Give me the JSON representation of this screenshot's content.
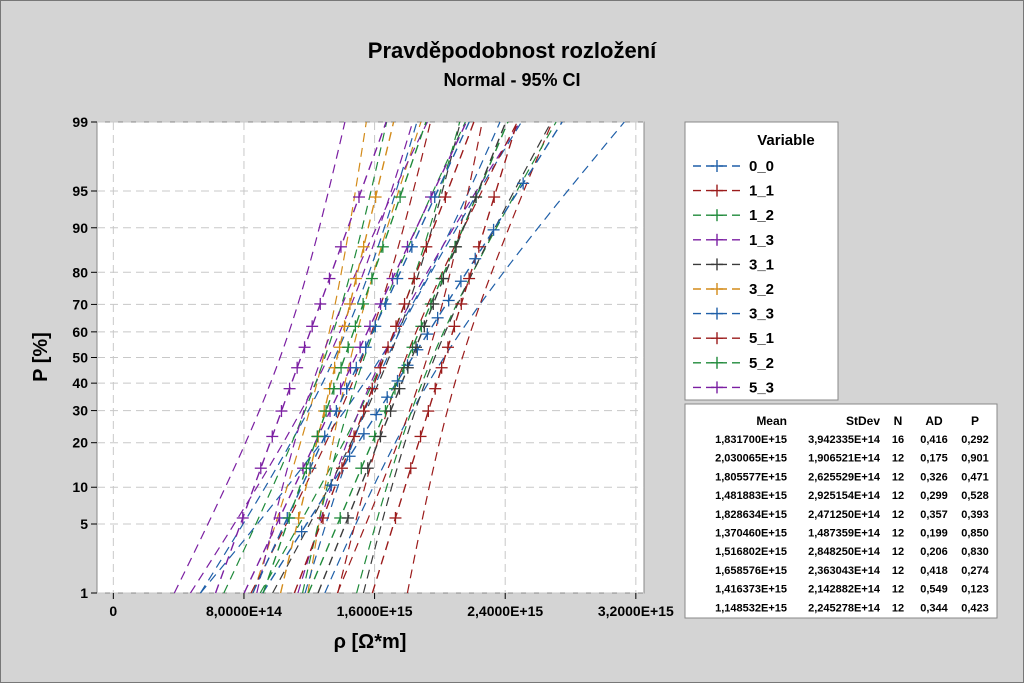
{
  "chart_data": {
    "type": "probability-plot",
    "title": "Pravděpodobnost rozložení",
    "subtitle": "Normal - 95% CI",
    "xlabel": "ρ [Ω*m]",
    "ylabel": "P [%]",
    "xlim": [
      -100000000000000,
      3250000000000000
    ],
    "x_ticks": [
      0,
      800000000000000,
      1600000000000000,
      2400000000000000,
      3200000000000000
    ],
    "x_tick_labels": [
      "0",
      "8,0000E+14",
      "1,6000E+15",
      "2,4000E+15",
      "3,2000E+15"
    ],
    "y_scale": "normal-probability",
    "y_ticks": [
      1,
      5,
      10,
      20,
      30,
      40,
      50,
      60,
      70,
      80,
      90,
      95,
      99
    ],
    "y_tick_labels": [
      "1",
      "5",
      "10",
      "20",
      "30",
      "40",
      "50",
      "60",
      "70",
      "80",
      "90",
      "95",
      "99"
    ],
    "grid": true,
    "legend_title": "Variable",
    "legend_position": "right",
    "stats_headers": [
      "Mean",
      "StDev",
      "N",
      "AD",
      "P"
    ],
    "series": [
      {
        "name": "0_0",
        "color": "#1f5fa8",
        "mean": 1831700000000000,
        "stdev": 394233500000000,
        "n": 16,
        "mean_label": "1,831700E+15",
        "stdev_label": "3,942335E+14",
        "n_label": "16",
        "ad_label": "0,416",
        "p_label": "0,292"
      },
      {
        "name": "1_1",
        "color": "#9b1b1b",
        "mean": 2030065000000000,
        "stdev": 190652100000000,
        "n": 12,
        "mean_label": "2,030065E+15",
        "stdev_label": "1,906521E+14",
        "n_label": "12",
        "ad_label": "0,175",
        "p_label": "0,901"
      },
      {
        "name": "1_2",
        "color": "#1f8a3a",
        "mean": 1805577000000000,
        "stdev": 262552900000000,
        "n": 12,
        "mean_label": "1,805577E+15",
        "stdev_label": "2,625529E+14",
        "n_label": "12",
        "ad_label": "0,326",
        "p_label": "0,471"
      },
      {
        "name": "1_3",
        "color": "#7b1fa2",
        "mean": 1481883000000000,
        "stdev": 292515400000000,
        "n": 12,
        "mean_label": "1,481883E+15",
        "stdev_label": "2,925154E+14",
        "n_label": "12",
        "ad_label": "0,299",
        "p_label": "0,528"
      },
      {
        "name": "3_1",
        "color": "#3a3a3a",
        "mean": 1828634000000000,
        "stdev": 247125000000000,
        "n": 12,
        "mean_label": "1,828634E+15",
        "stdev_label": "2,471250E+14",
        "n_label": "12",
        "ad_label": "0,357",
        "p_label": "0,393"
      },
      {
        "name": "3_2",
        "color": "#d38b1a",
        "mean": 1370460000000000,
        "stdev": 148735900000000,
        "n": 12,
        "mean_label": "1,370460E+15",
        "stdev_label": "1,487359E+14",
        "n_label": "12",
        "ad_label": "0,199",
        "p_label": "0,850"
      },
      {
        "name": "3_3",
        "color": "#1f5fa8",
        "mean": 1516802000000000,
        "stdev": 284825000000000,
        "n": 12,
        "mean_label": "1,516802E+15",
        "stdev_label": "2,848250E+14",
        "n_label": "12",
        "ad_label": "0,206",
        "p_label": "0,830"
      },
      {
        "name": "5_1",
        "color": "#9b1b1b",
        "mean": 1658576000000000,
        "stdev": 236304300000000,
        "n": 12,
        "mean_label": "1,658576E+15",
        "stdev_label": "2,363043E+14",
        "n_label": "12",
        "ad_label": "0,418",
        "p_label": "0,274"
      },
      {
        "name": "5_2",
        "color": "#1f8a3a",
        "mean": 1416373000000000,
        "stdev": 214288200000000,
        "n": 12,
        "mean_label": "1,416373E+15",
        "stdev_label": "2,142882E+14",
        "n_label": "12",
        "ad_label": "0,549",
        "p_label": "0,123"
      },
      {
        "name": "5_3",
        "color": "#7b1fa2",
        "mean": 1148532000000000,
        "stdev": 224527800000000,
        "n": 12,
        "mean_label": "1,148532E+15",
        "stdev_label": "2,245278E+14",
        "n_label": "12",
        "ad_label": "0,344",
        "p_label": "0,423"
      }
    ]
  }
}
